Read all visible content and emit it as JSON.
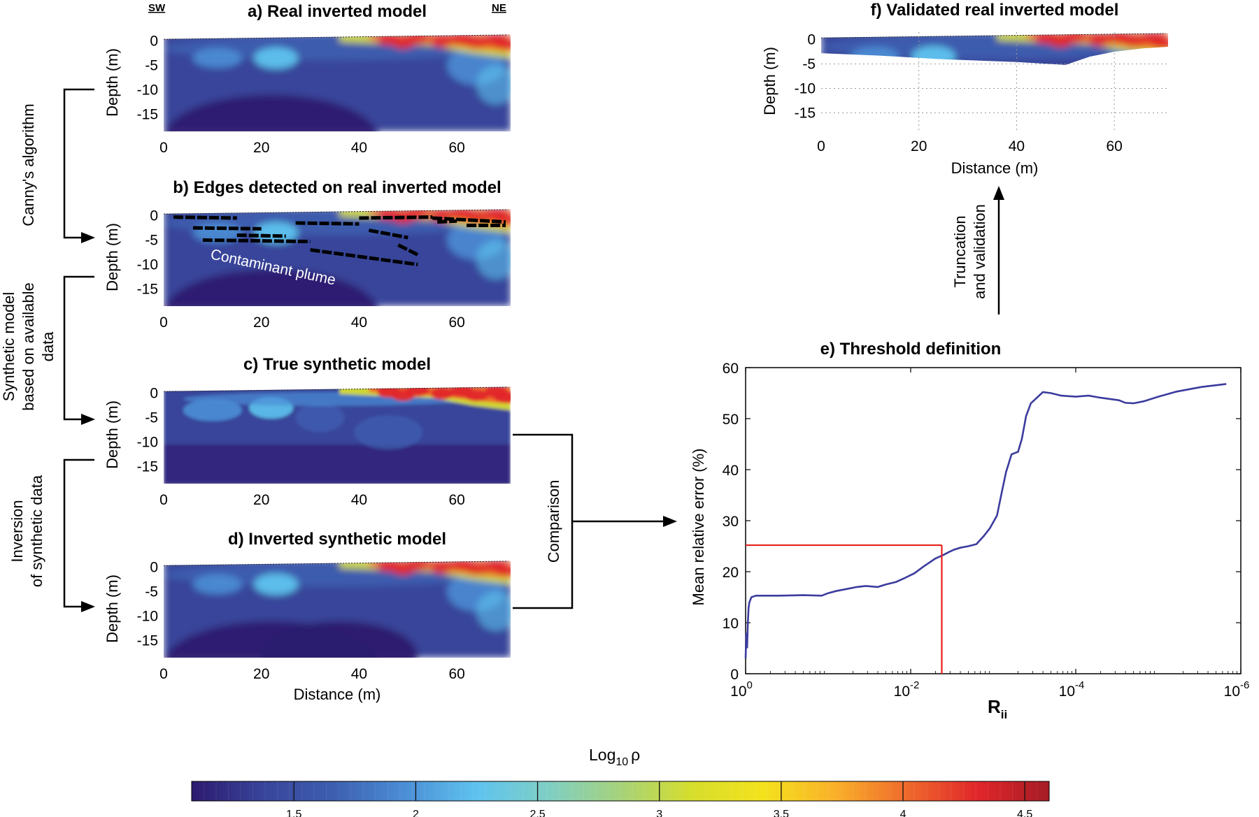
{
  "orientation": {
    "left": "SW",
    "right": "NE"
  },
  "panels": {
    "a": {
      "title": "a) Real inverted model",
      "ylabel": "Depth (m)"
    },
    "b": {
      "title": "b) Edges detected on real inverted model",
      "ylabel": "Depth (m)",
      "annotation": "Contaminant plume"
    },
    "c": {
      "title": "c) True synthetic model",
      "ylabel": "Depth (m)"
    },
    "d": {
      "title": "d) Inverted synthetic model",
      "ylabel": "Depth (m)",
      "xlabel": "Distance (m)"
    },
    "f": {
      "title": "f) Validated real inverted model",
      "ylabel": "Depth (m)",
      "xlabel": "Distance (m)"
    }
  },
  "section_axes": {
    "x_ticks": [
      "0",
      "20",
      "40",
      "60"
    ],
    "y_ticks": [
      "0",
      "-5",
      "-10",
      "-15"
    ],
    "xlim": [
      0,
      71
    ],
    "ylim": [
      -18.5,
      1.5
    ]
  },
  "process_labels": {
    "canny": "Canny's algorithm",
    "synthetic_line1": "Synthetic model",
    "synthetic_line2": "based on available",
    "synthetic_line3": "data",
    "inversion_line1": "Inversion",
    "inversion_line2": "of synthetic data",
    "comparison": "Comparison",
    "truncation_line1": "Truncation",
    "truncation_line2": "and validation"
  },
  "threshold": {
    "title": "e) Threshold definition",
    "ylabel": "Mean relative error (%)",
    "xlabel_main": "R",
    "xlabel_sub": "ii",
    "y_ticks": [
      "0",
      "10",
      "20",
      "30",
      "40",
      "50",
      "60"
    ],
    "x_tick_base": "10",
    "x_tick_exps": [
      "0",
      "-2",
      "-4",
      "-6"
    ]
  },
  "colorbar": {
    "label_main": "Log",
    "label_sub": "10",
    "label_symbol": "ρ",
    "ticks": [
      "1.5",
      "2",
      "2.5",
      "3",
      "3.5",
      "4",
      "4.5"
    ],
    "range": [
      1.08,
      4.6
    ]
  },
  "colors": {
    "line": "#3b3b9e",
    "threshold": "#e8211b",
    "colormap": [
      "#2c1a6e",
      "#38449a",
      "#3d5fb0",
      "#4c8fd6",
      "#5ec3ee",
      "#7fcfc4",
      "#a6d27a",
      "#d6de2c",
      "#f4e21d",
      "#f9b12a",
      "#ef6a2c",
      "#e0262a",
      "#a51c26"
    ]
  },
  "chart_data": [
    {
      "type": "line",
      "title": "e) Threshold definition",
      "xlabel": "Rii",
      "ylabel": "Mean relative error (%)",
      "x_scale": "log, reversed",
      "xlim": [
        1,
        1e-06
      ],
      "ylim": [
        0,
        60
      ],
      "grid": false,
      "series": [
        {
          "x": [
            1.0,
            0.98,
            0.96,
            0.94,
            0.92,
            0.9,
            0.85,
            0.75,
            0.6,
            0.4,
            0.2,
            0.12,
            0.1,
            0.08,
            0.06,
            0.045,
            0.035,
            0.025,
            0.02,
            0.015,
            0.012,
            0.009,
            0.007,
            0.005,
            0.004,
            0.0035,
            0.003,
            0.0025,
            0.002,
            0.0016,
            0.0013,
            0.0011,
            0.0009,
            0.0008,
            0.0007,
            0.0006,
            0.0005,
            0.00045,
            0.0004,
            0.00035,
            0.0003,
            0.00025,
            0.0002,
            0.00015,
            0.0001,
            7e-05,
            5e-05,
            3e-05,
            2.5e-05,
            2e-05,
            1.5e-05,
            1e-05,
            6e-06,
            3e-06,
            1.5e-06
          ],
          "y": [
            3,
            8,
            5,
            10,
            13,
            14,
            15,
            15.3,
            15.3,
            15.3,
            15.4,
            15.3,
            15.8,
            16.2,
            16.6,
            17.0,
            17.2,
            17.0,
            17.5,
            18.0,
            18.7,
            19.7,
            21.0,
            22.6,
            23.3,
            23.8,
            24.3,
            24.7,
            25.0,
            25.4,
            27.0,
            28.5,
            31.0,
            35.0,
            39.5,
            43.0,
            43.5,
            46.0,
            50.5,
            53.0,
            54.0,
            55.2,
            55.0,
            54.5,
            54.3,
            54.5,
            54.1,
            53.6,
            53.1,
            53.0,
            53.4,
            54.3,
            55.3,
            56.2,
            56.8
          ]
        }
      ],
      "annotations": [
        {
          "type": "threshold",
          "x": 0.0042,
          "y": 25.2
        }
      ]
    }
  ]
}
